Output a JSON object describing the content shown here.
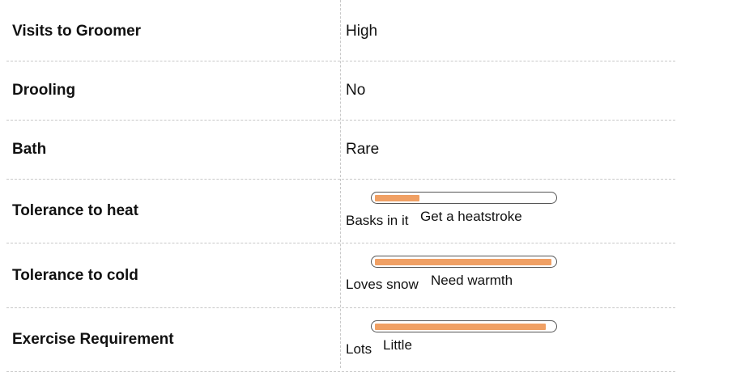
{
  "rows": [
    {
      "label": "Visits to Groomer",
      "value": "High"
    },
    {
      "label": "Drooling",
      "value": "No"
    },
    {
      "label": "Bath",
      "value": "Rare"
    },
    {
      "label": "Tolerance to heat",
      "meter": {
        "low_label": "Basks in it",
        "high_label": "Get a heatstroke",
        "level": 0.25
      }
    },
    {
      "label": "Tolerance to cold",
      "meter": {
        "low_label": "Loves snow",
        "high_label": "Need warmth",
        "level": 0.99
      }
    },
    {
      "label": "Exercise Requirement",
      "meter": {
        "low_label": "Lots",
        "high_label": "Little",
        "level": 0.96
      }
    }
  ],
  "colors": {
    "meter_fill": "#f0a064",
    "divider": "#c8c8c8"
  }
}
